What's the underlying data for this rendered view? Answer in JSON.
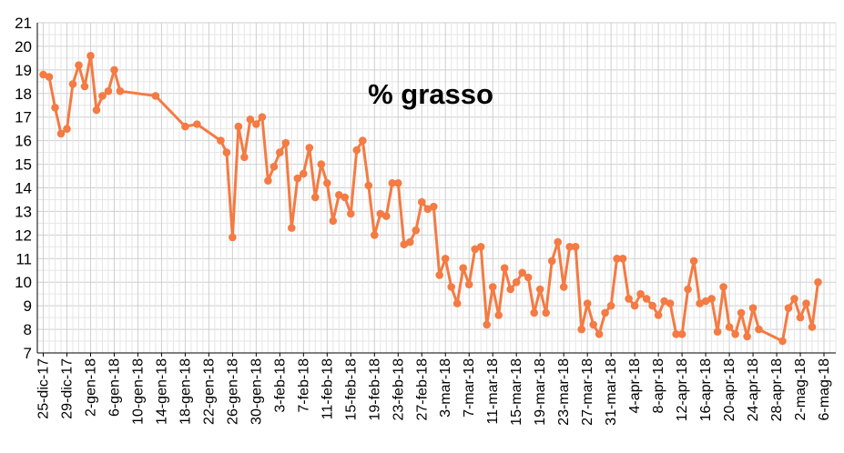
{
  "chart_data": {
    "type": "line",
    "title": "% grasso",
    "xlabel": "",
    "ylabel": "",
    "ylim": [
      7,
      21
    ],
    "yticks": [
      7,
      8,
      9,
      10,
      11,
      12,
      13,
      14,
      15,
      16,
      17,
      18,
      19,
      20,
      21
    ],
    "xlim": [
      "2017-12-24",
      "2018-05-08"
    ],
    "x_tick_labels": [
      "25-dic-17",
      "29-dic-17",
      "2-gen-18",
      "6-gen-18",
      "10-gen-18",
      "14-gen-18",
      "18-gen-18",
      "22-gen-18",
      "26-gen-18",
      "30-gen-18",
      "3-feb-18",
      "7-feb-18",
      "11-feb-18",
      "15-feb-18",
      "19-feb-18",
      "23-feb-18",
      "27-feb-18",
      "3-mar-18",
      "7-mar-18",
      "11-mar-18",
      "15-mar-18",
      "19-mar-18",
      "23-mar-18",
      "27-mar-18",
      "31-mar-18",
      "4-apr-18",
      "8-apr-18",
      "12-apr-18",
      "16-apr-18",
      "20-apr-18",
      "24-apr-18",
      "28-apr-18",
      "2-mag-18",
      "6-mag-18"
    ],
    "grid": true,
    "series_color": "#f47b43",
    "series": [
      {
        "points": [
          [
            "2017-12-25",
            18.8
          ],
          [
            "2017-12-26",
            18.7
          ],
          [
            "2017-12-27",
            17.4
          ],
          [
            "2017-12-28",
            16.3
          ],
          [
            "2017-12-29",
            16.5
          ],
          [
            "2017-12-30",
            18.4
          ],
          [
            "2017-12-31",
            19.2
          ],
          [
            "2018-01-01",
            18.3
          ],
          [
            "2018-01-02",
            19.6
          ],
          [
            "2018-01-03",
            17.3
          ],
          [
            "2018-01-04",
            17.9
          ],
          [
            "2018-01-05",
            18.1
          ],
          [
            "2018-01-06",
            19.0
          ],
          [
            "2018-01-07",
            18.1
          ],
          [
            "2018-01-13",
            17.9
          ],
          [
            "2018-01-18",
            16.6
          ],
          [
            "2018-01-20",
            16.7
          ],
          [
            "2018-01-24",
            16.0
          ],
          [
            "2018-01-25",
            15.5
          ],
          [
            "2018-01-26",
            11.9
          ],
          [
            "2018-01-27",
            16.6
          ],
          [
            "2018-01-28",
            15.3
          ],
          [
            "2018-01-29",
            16.9
          ],
          [
            "2018-01-30",
            16.7
          ],
          [
            "2018-01-31",
            17.0
          ],
          [
            "2018-02-01",
            14.3
          ],
          [
            "2018-02-02",
            14.9
          ],
          [
            "2018-02-03",
            15.5
          ],
          [
            "2018-02-04",
            15.9
          ],
          [
            "2018-02-05",
            12.3
          ],
          [
            "2018-02-06",
            14.4
          ],
          [
            "2018-02-07",
            14.6
          ],
          [
            "2018-02-08",
            15.7
          ],
          [
            "2018-02-09",
            13.6
          ],
          [
            "2018-02-10",
            15.0
          ],
          [
            "2018-02-11",
            14.2
          ],
          [
            "2018-02-12",
            12.6
          ],
          [
            "2018-02-13",
            13.7
          ],
          [
            "2018-02-14",
            13.6
          ],
          [
            "2018-02-15",
            12.9
          ],
          [
            "2018-02-16",
            15.6
          ],
          [
            "2018-02-17",
            16.0
          ],
          [
            "2018-02-18",
            14.1
          ],
          [
            "2018-02-19",
            12.0
          ],
          [
            "2018-02-20",
            12.9
          ],
          [
            "2018-02-21",
            12.8
          ],
          [
            "2018-02-22",
            14.2
          ],
          [
            "2018-02-23",
            14.2
          ],
          [
            "2018-02-24",
            11.6
          ],
          [
            "2018-02-25",
            11.7
          ],
          [
            "2018-02-26",
            12.2
          ],
          [
            "2018-02-27",
            13.4
          ],
          [
            "2018-02-28",
            13.1
          ],
          [
            "2018-03-01",
            13.2
          ],
          [
            "2018-03-02",
            10.3
          ],
          [
            "2018-03-03",
            11.0
          ],
          [
            "2018-03-04",
            9.8
          ],
          [
            "2018-03-05",
            9.1
          ],
          [
            "2018-03-06",
            10.6
          ],
          [
            "2018-03-07",
            9.9
          ],
          [
            "2018-03-08",
            11.4
          ],
          [
            "2018-03-09",
            11.5
          ],
          [
            "2018-03-10",
            8.2
          ],
          [
            "2018-03-11",
            9.8
          ],
          [
            "2018-03-12",
            8.6
          ],
          [
            "2018-03-13",
            10.6
          ],
          [
            "2018-03-14",
            9.7
          ],
          [
            "2018-03-15",
            10.0
          ],
          [
            "2018-03-16",
            10.4
          ],
          [
            "2018-03-17",
            10.2
          ],
          [
            "2018-03-18",
            8.7
          ],
          [
            "2018-03-19",
            9.7
          ],
          [
            "2018-03-20",
            8.7
          ],
          [
            "2018-03-21",
            10.9
          ],
          [
            "2018-03-22",
            11.7
          ],
          [
            "2018-03-23",
            9.8
          ],
          [
            "2018-03-24",
            11.5
          ],
          [
            "2018-03-25",
            11.5
          ],
          [
            "2018-03-26",
            8.0
          ],
          [
            "2018-03-27",
            9.1
          ],
          [
            "2018-03-28",
            8.2
          ],
          [
            "2018-03-29",
            7.8
          ],
          [
            "2018-03-30",
            8.7
          ],
          [
            "2018-03-31",
            9.0
          ],
          [
            "2018-04-01",
            11.0
          ],
          [
            "2018-04-02",
            11.0
          ],
          [
            "2018-04-03",
            9.3
          ],
          [
            "2018-04-04",
            9.0
          ],
          [
            "2018-04-05",
            9.5
          ],
          [
            "2018-04-06",
            9.3
          ],
          [
            "2018-04-07",
            9.0
          ],
          [
            "2018-04-08",
            8.6
          ],
          [
            "2018-04-09",
            9.2
          ],
          [
            "2018-04-10",
            9.1
          ],
          [
            "2018-04-11",
            7.8
          ],
          [
            "2018-04-12",
            7.8
          ],
          [
            "2018-04-13",
            9.7
          ],
          [
            "2018-04-14",
            10.9
          ],
          [
            "2018-04-15",
            9.1
          ],
          [
            "2018-04-16",
            9.2
          ],
          [
            "2018-04-17",
            9.3
          ],
          [
            "2018-04-18",
            7.9
          ],
          [
            "2018-04-19",
            9.8
          ],
          [
            "2018-04-20",
            8.1
          ],
          [
            "2018-04-21",
            7.8
          ],
          [
            "2018-04-22",
            8.7
          ],
          [
            "2018-04-23",
            7.7
          ],
          [
            "2018-04-24",
            8.9
          ],
          [
            "2018-04-25",
            8.0
          ],
          [
            "2018-04-29",
            7.5
          ],
          [
            "2018-04-30",
            8.9
          ],
          [
            "2018-05-01",
            9.3
          ],
          [
            "2018-05-02",
            8.5
          ],
          [
            "2018-05-03",
            9.1
          ],
          [
            "2018-05-04",
            8.1
          ],
          [
            "2018-05-05",
            10.0
          ]
        ]
      }
    ]
  }
}
